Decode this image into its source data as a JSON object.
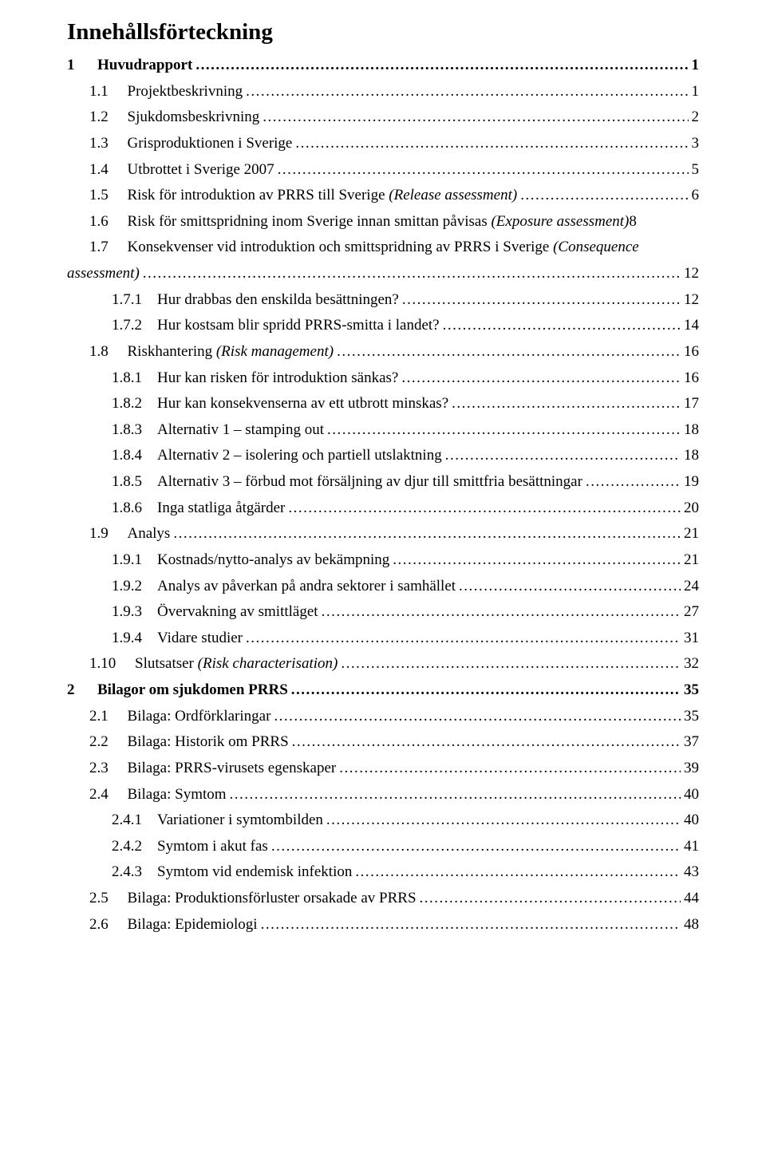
{
  "heading": "Innehållsförteckning",
  "leaders": "........................................................................................................................................................................................................................................................................................................................",
  "toc": [
    {
      "num": "1",
      "label": "Huvudrapport",
      "page": "1",
      "level": 0,
      "bold": true
    },
    {
      "num": "1.1",
      "label": "Projektbeskrivning",
      "page": "1",
      "level": 1
    },
    {
      "num": "1.2",
      "label": "Sjukdomsbeskrivning",
      "page": "2",
      "level": 1
    },
    {
      "num": "1.3",
      "label": "Grisproduktionen i Sverige",
      "page": "3",
      "level": 1
    },
    {
      "num": "1.4",
      "label": "Utbrottet i Sverige 2007",
      "page": "5",
      "level": 1
    },
    {
      "num": "1.5",
      "label": "Risk för introduktion av PRRS till Sverige ",
      "label_italic": "(Release assessment)",
      "page": "6",
      "level": 1
    },
    {
      "num": "1.6",
      "label": "Risk för smittspridning inom Sverige innan smittan påvisas ",
      "label_italic": "(Exposure assessment)",
      "page": "8",
      "level": 1,
      "nowrap_leaders": true
    },
    {
      "num": "1.7",
      "label": "Konsekvenser vid introduktion och smittspridning av PRRS i Sverige ",
      "label_italic": "(Consequence assessment)",
      "page": "12",
      "level": 1,
      "wrap": true
    },
    {
      "num": "1.7.1",
      "label": "Hur drabbas den enskilda besättningen?",
      "page": "12",
      "level": 2
    },
    {
      "num": "1.7.2",
      "label": "Hur kostsam blir spridd PRRS-smitta i landet?",
      "page": "14",
      "level": 2
    },
    {
      "num": "1.8",
      "label": "Riskhantering ",
      "label_italic": "(Risk management)",
      "page": "16",
      "level": 1
    },
    {
      "num": "1.8.1",
      "label": "Hur kan risken för introduktion sänkas?",
      "page": "16",
      "level": 2
    },
    {
      "num": "1.8.2",
      "label": "Hur kan konsekvenserna av ett utbrott minskas?",
      "page": "17",
      "level": 2
    },
    {
      "num": "1.8.3",
      "label": "Alternativ 1 – stamping out",
      "page": "18",
      "level": 2
    },
    {
      "num": "1.8.4",
      "label": "Alternativ 2 – isolering och partiell utslaktning",
      "page": "18",
      "level": 2
    },
    {
      "num": "1.8.5",
      "label": "Alternativ 3 – förbud mot försäljning av djur till smittfria besättningar",
      "page": "19",
      "level": 2
    },
    {
      "num": "1.8.6",
      "label": "Inga statliga åtgärder",
      "page": "20",
      "level": 2
    },
    {
      "num": "1.9",
      "label": "Analys",
      "page": "21",
      "level": 1
    },
    {
      "num": "1.9.1",
      "label": "Kostnads/nytto-analys av bekämpning",
      "page": "21",
      "level": 2
    },
    {
      "num": "1.9.2",
      "label": "Analys av påverkan på andra sektorer i samhället",
      "page": "24",
      "level": 2
    },
    {
      "num": "1.9.3",
      "label": "Övervakning av smittläget",
      "page": "27",
      "level": 2
    },
    {
      "num": "1.9.4",
      "label": "Vidare studier",
      "page": "31",
      "level": 2
    },
    {
      "num": "1.10",
      "label": "Slutsatser ",
      "label_italic": "(Risk characterisation)",
      "page": "32",
      "level": 1
    },
    {
      "num": "2",
      "label": "Bilagor om sjukdomen PRRS",
      "page": "35",
      "level": 0,
      "bold": true
    },
    {
      "num": "2.1",
      "label": "Bilaga: Ordförklaringar",
      "page": "35",
      "level": 1
    },
    {
      "num": "2.2",
      "label": "Bilaga: Historik om PRRS",
      "page": "37",
      "level": 1
    },
    {
      "num": "2.3",
      "label": "Bilaga: PRRS-virusets egenskaper",
      "page": "39",
      "level": 1
    },
    {
      "num": "2.4",
      "label": "Bilaga: Symtom",
      "page": "40",
      "level": 1
    },
    {
      "num": "2.4.1",
      "label": "Variationer i symtombilden",
      "page": "40",
      "level": 2
    },
    {
      "num": "2.4.2",
      "label": "Symtom i akut fas",
      "page": "41",
      "level": 2
    },
    {
      "num": "2.4.3",
      "label": "Symtom vid endemisk infektion",
      "page": "43",
      "level": 2
    },
    {
      "num": "2.5",
      "label": "Bilaga: Produktionsförluster orsakade av PRRS",
      "page": "44",
      "level": 1
    },
    {
      "num": "2.6",
      "label": "Bilaga: Epidemiologi",
      "page": "48",
      "level": 1
    }
  ],
  "numGapByLevel": {
    "0": "      ",
    "1": "     ",
    "2": "    "
  }
}
